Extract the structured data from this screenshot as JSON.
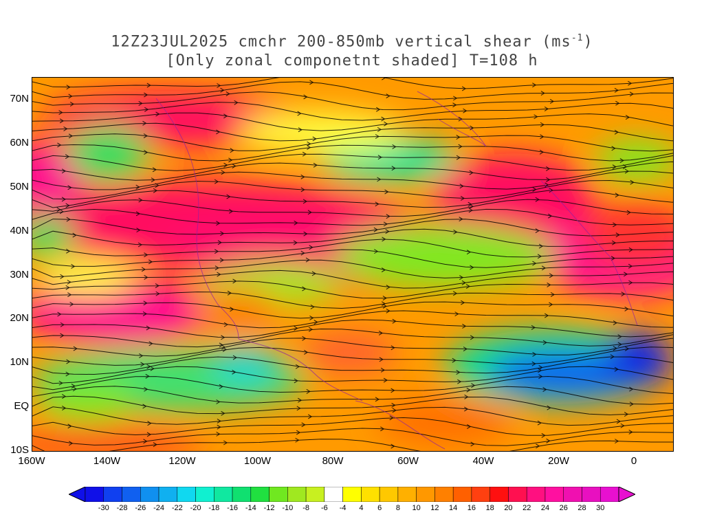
{
  "title_line1": "12Z23JUL2025 cmchr 200-850mb vertical shear (ms",
  "title_sup": "-1",
  "title_close": ")",
  "title_line2": "[Only zonal componetnt shaded] T=108 h",
  "lat_labels": [
    "70N",
    "60N",
    "50N",
    "40N",
    "30N",
    "20N",
    "10N",
    "EQ",
    "10S"
  ],
  "lon_labels": [
    "160W",
    "140W",
    "120W",
    "100W",
    "80W",
    "60W",
    "40W",
    "20W",
    "0"
  ],
  "colorbar": {
    "labels": [
      "-30",
      "-28",
      "-26",
      "-24",
      "-22",
      "-20",
      "-18",
      "-16",
      "-14",
      "-12",
      "-10",
      "-8",
      "-6",
      "-4",
      "4",
      "6",
      "8",
      "10",
      "12",
      "14",
      "16",
      "18",
      "20",
      "22",
      "24",
      "26",
      "28",
      "30"
    ],
    "colors": [
      "#1010e8",
      "#1040f0",
      "#1060f0",
      "#1090f0",
      "#10b0f0",
      "#10d8f0",
      "#10f0d0",
      "#10e8a0",
      "#10e070",
      "#20e040",
      "#70e820",
      "#a0e820",
      "#c8f020",
      "#ffffff",
      "#ffff00",
      "#ffe000",
      "#ffc800",
      "#ffb000",
      "#ff9800",
      "#ff8000",
      "#ff6000",
      "#ff4010",
      "#ff1010",
      "#ff1050",
      "#ff1080",
      "#ff10a0",
      "#f010b0",
      "#e810c0",
      "#e810d0"
    ],
    "under_color": "#1010e8",
    "over_color": "#e810d0"
  }
}
